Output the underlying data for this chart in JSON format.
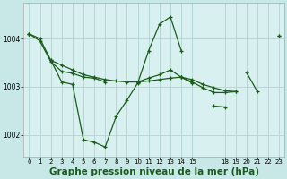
{
  "background_color": "#c8e8e8",
  "plot_bg_color": "#d8f0f0",
  "grid_color": "#b8d8d8",
  "line_color": "#1a5c1a",
  "title": "Graphe pression niveau de la mer (hPa)",
  "title_fontsize": 7.5,
  "xlim": [
    -0.5,
    23.5
  ],
  "ylim": [
    1001.55,
    1004.75
  ],
  "xtick_positions": [
    0,
    1,
    2,
    3,
    4,
    5,
    6,
    7,
    8,
    9,
    10,
    11,
    12,
    13,
    14,
    15,
    18,
    19,
    20,
    21,
    22,
    23
  ],
  "xtick_labels": [
    "0",
    "1",
    "2",
    "3",
    "4",
    "5",
    "6",
    "7",
    "8",
    "9",
    "10",
    "11",
    "12",
    "13",
    "14",
    "15",
    "18",
    "19",
    "20",
    "21",
    "22",
    "23"
  ],
  "yticks": [
    1002,
    1003,
    1004
  ],
  "series": [
    [
      1004.1,
      1004.0,
      1003.55,
      1003.45,
      1003.35,
      1003.25,
      1003.2,
      1003.15,
      1003.12,
      1003.1,
      1003.1,
      1003.12,
      1003.15,
      1003.18,
      1003.2,
      1003.15,
      1003.05,
      1002.98,
      1002.92,
      1002.9,
      null,
      null,
      null,
      1004.05
    ],
    [
      1004.1,
      null,
      1003.55,
      1003.1,
      1003.05,
      1001.9,
      1001.85,
      1001.75,
      1002.38,
      1002.72,
      1003.08,
      1003.75,
      1004.3,
      1004.45,
      1003.75,
      null,
      null,
      1002.6,
      1002.58,
      null,
      1003.3,
      1002.9,
      null,
      1004.05
    ],
    [
      1004.1,
      1003.95,
      1003.52,
      1003.32,
      1003.28,
      1003.2,
      1003.18,
      1003.1,
      null,
      null,
      1003.1,
      null,
      null,
      null,
      1003.2,
      1003.08,
      null,
      null,
      null,
      null,
      null,
      null,
      null,
      null
    ],
    [
      null,
      null,
      null,
      null,
      null,
      null,
      null,
      null,
      null,
      null,
      1003.1,
      1003.18,
      1003.25,
      1003.35,
      1003.2,
      1003.1,
      1002.98,
      1002.88,
      1002.88,
      1002.9,
      null,
      null,
      null,
      null
    ]
  ]
}
